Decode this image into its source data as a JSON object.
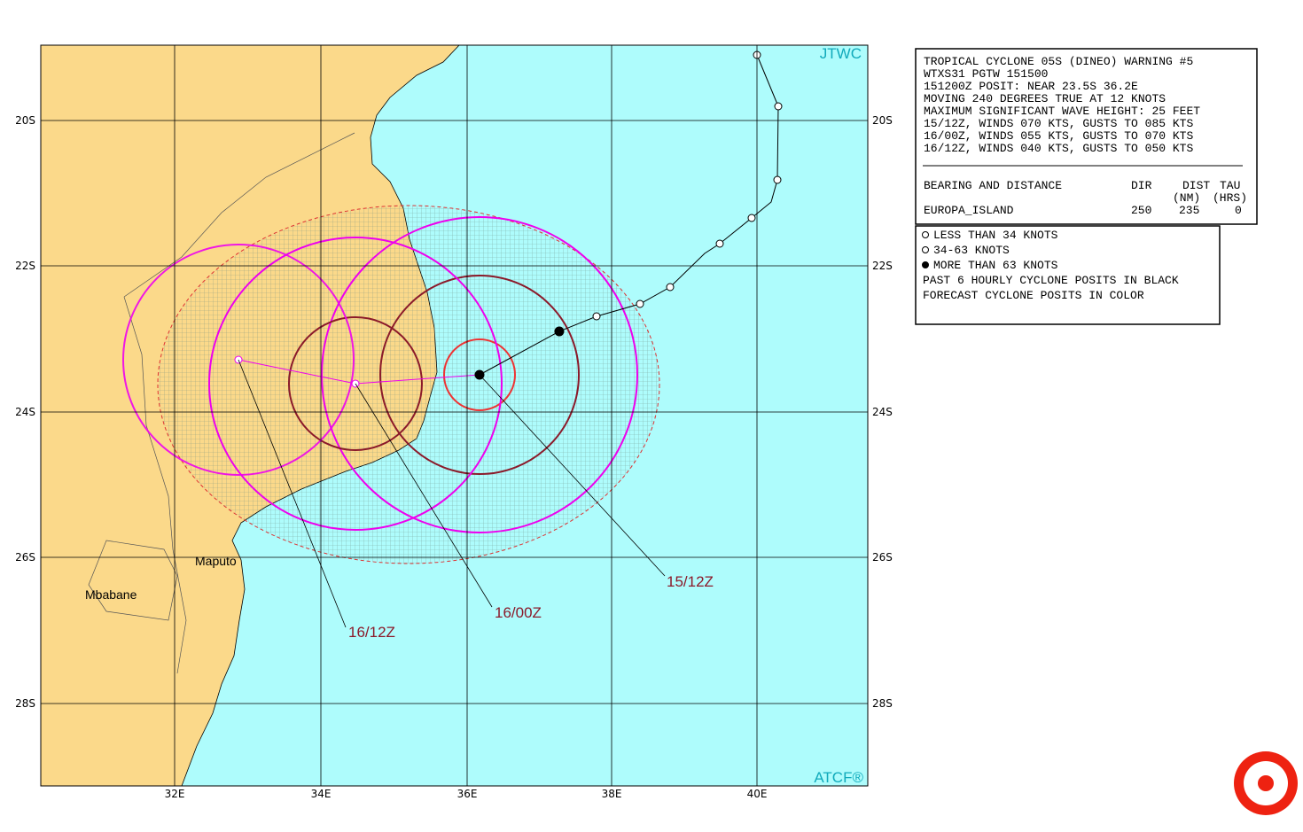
{
  "map": {
    "title_tag": "JTWC",
    "footer_tag": "ATCF®",
    "lat_labels": [
      "20S",
      "22S",
      "24S",
      "26S",
      "28S"
    ],
    "lon_labels": [
      "32E",
      "34E",
      "36E",
      "38E",
      "40E"
    ],
    "places": [
      "Maputo",
      "Mbabane"
    ],
    "forecast_labels": [
      "15/12Z",
      "16/00Z",
      "16/12Z"
    ]
  },
  "warning": {
    "lines": [
      "TROPICAL CYCLONE 05S (DINEO) WARNING #5",
      "WTXS31 PGTW 151500",
      "151200Z POSIT: NEAR 23.5S 36.2E",
      "MOVING 240 DEGREES TRUE AT 12 KNOTS",
      "MAXIMUM SIGNIFICANT WAVE HEIGHT: 25 FEET",
      "15/12Z, WINDS 070 KTS, GUSTS TO 085 KTS",
      "16/00Z, WINDS 055 KTS, GUSTS TO 070 KTS",
      "16/12Z, WINDS 040 KTS, GUSTS TO 050 KTS"
    ],
    "table_header": [
      "BEARING AND DISTANCE",
      "DIR",
      "DIST",
      "TAU"
    ],
    "table_units": [
      "(NM)",
      "(HRS)"
    ],
    "table_row": [
      "EUROPA_ISLAND",
      "250",
      "235",
      "0"
    ]
  },
  "legend": {
    "items": [
      "LESS THAN 34 KNOTS",
      "34-63 KNOTS",
      "MORE THAN 63 KNOTS",
      "PAST 6 HOURLY CYCLONE POSITS IN BLACK",
      "FORECAST CYCLONE POSITS IN COLOR"
    ]
  }
}
